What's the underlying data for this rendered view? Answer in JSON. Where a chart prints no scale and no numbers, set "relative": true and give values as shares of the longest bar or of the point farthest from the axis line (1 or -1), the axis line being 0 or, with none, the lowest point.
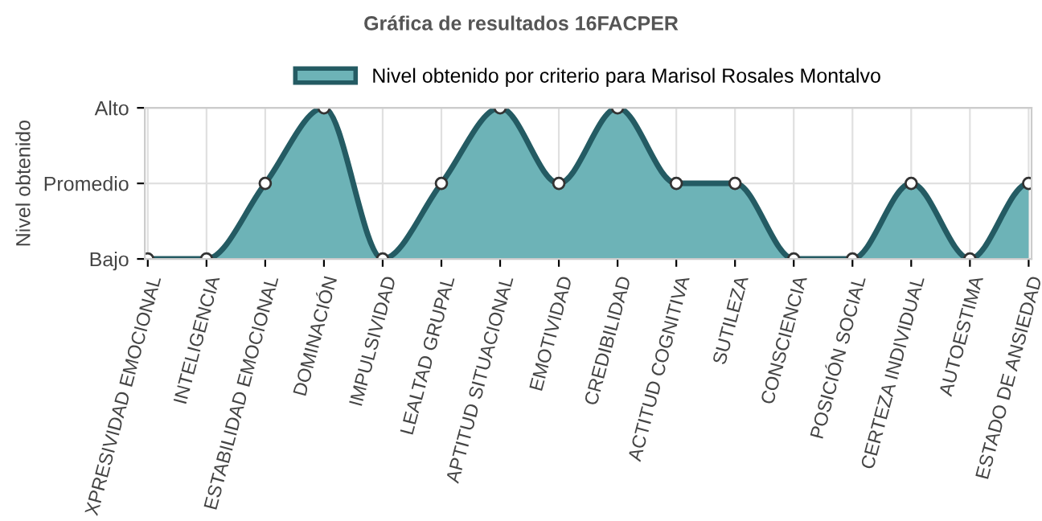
{
  "chart_data": {
    "type": "area",
    "title": "Gráfica de resultados 16FACPER",
    "ylabel": "Nivel obtenido",
    "categories": [
      "XPRESIVIDAD EMOCIONAL",
      "INTELIGENCIA",
      "ESTABILIDAD EMOCIONAL",
      "DOMINACIÓN",
      "IMPULSIVIDAD",
      "LEALTAD GRUPAL",
      "APTITUD SITUACIONAL",
      "EMOTIVIDAD",
      "CREDIBILIDAD",
      "ACTITUD COGNITIVA",
      "SUTILEZA",
      "CONSCIENCIA",
      "POSICIÓN SOCIAL",
      "CERTEZA INDIVIDUAL",
      "AUTOESTIMA",
      "ESTADO DE ANSIEDAD"
    ],
    "series": [
      {
        "name": "Nivel obtenido por criterio para Marisol Rosales Montalvo",
        "color": "#6db3b7",
        "values": [
          0,
          0,
          0.5,
          1,
          0,
          0.5,
          1,
          0.5,
          1,
          0.5,
          0.5,
          0,
          0,
          0.5,
          0,
          0.5
        ]
      }
    ],
    "relative": true,
    "y_categories": [
      "Alto",
      "Promedio",
      "Bajo"
    ],
    "grid": true,
    "legend": "top",
    "marker": "circle",
    "line_style": "solid"
  }
}
